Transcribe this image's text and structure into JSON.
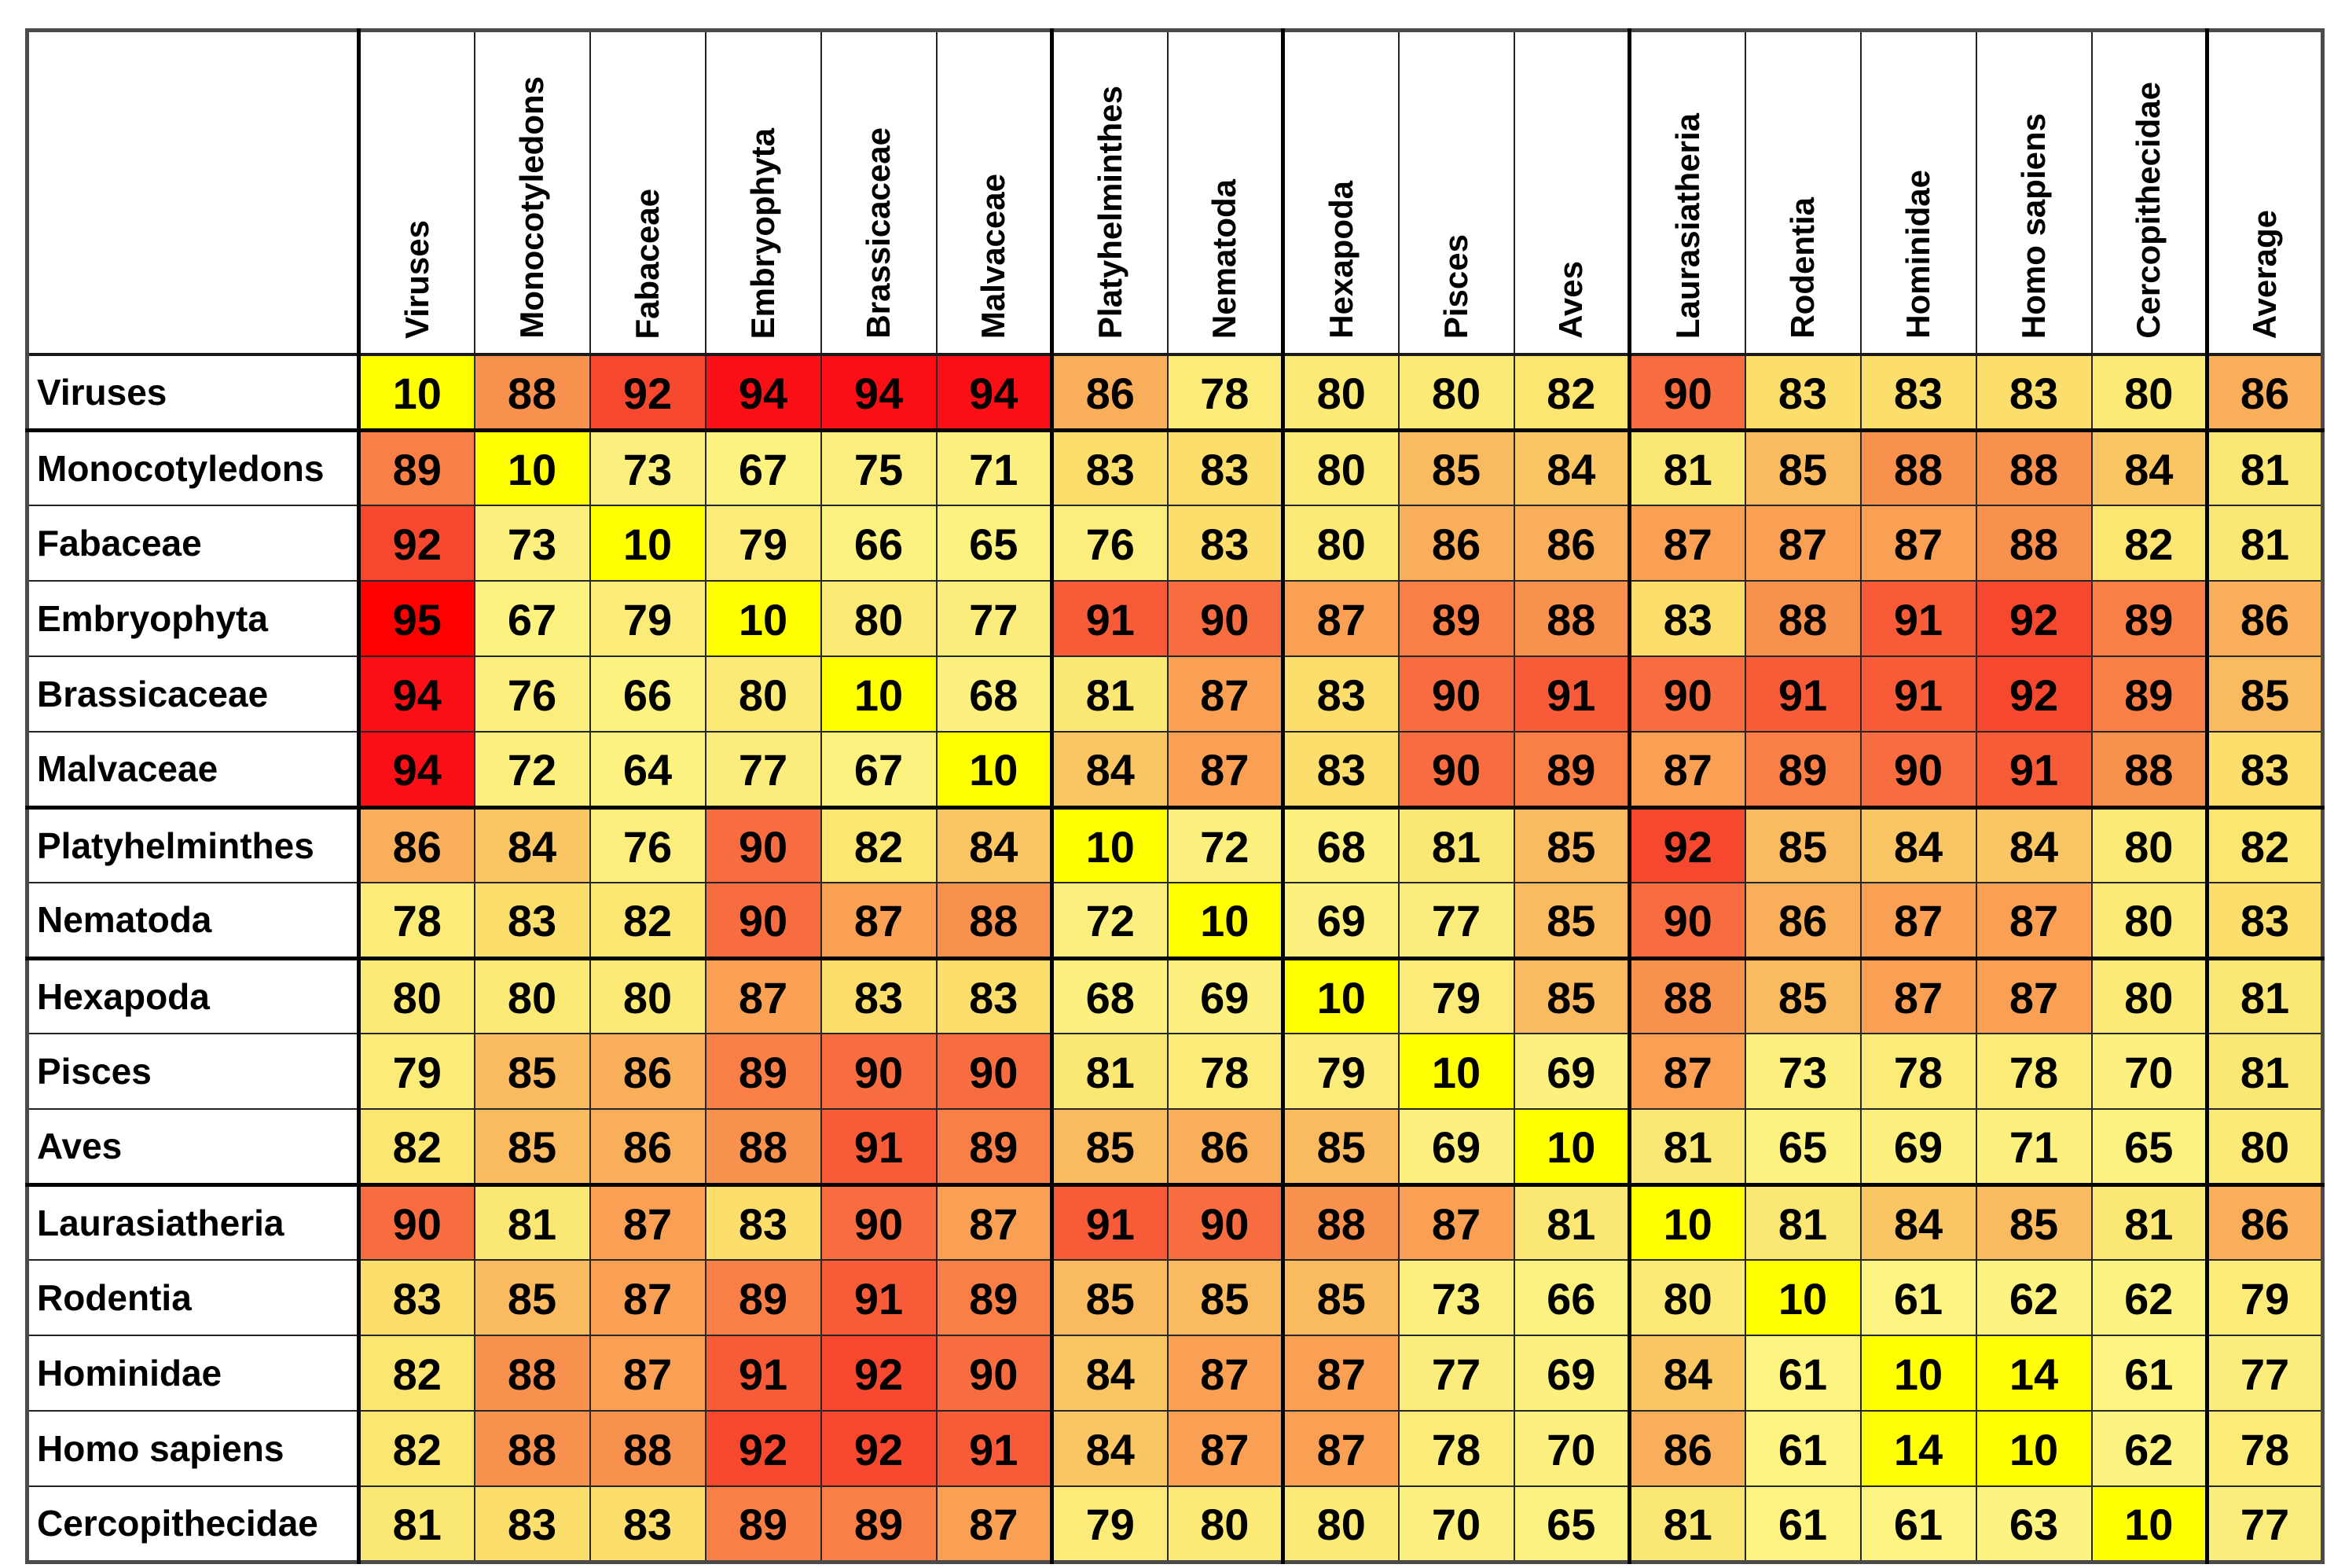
{
  "chart_data": {
    "type": "heatmap",
    "columns": [
      "Viruses",
      "Monocotyledons",
      "Fabaceae",
      "Embryophyta",
      "Brassicaceae",
      "Malvaceae",
      "Platyhelminthes",
      "Nematoda",
      "Hexapoda",
      "Pisces",
      "Aves",
      "Laurasiatheria",
      "Rodentia",
      "Hominidae",
      "Homo sapiens",
      "Cercopithecidae",
      "Average"
    ],
    "rows": [
      {
        "label": "Viruses",
        "values": [
          10,
          88,
          92,
          94,
          94,
          94,
          86,
          78,
          80,
          80,
          82,
          90,
          83,
          83,
          83,
          80,
          86
        ]
      },
      {
        "label": "Monocotyledons",
        "values": [
          89,
          10,
          73,
          67,
          75,
          71,
          83,
          83,
          80,
          85,
          84,
          81,
          85,
          88,
          88,
          84,
          81
        ]
      },
      {
        "label": "Fabaceae",
        "values": [
          92,
          73,
          10,
          79,
          66,
          65,
          76,
          83,
          80,
          86,
          86,
          87,
          87,
          87,
          88,
          82,
          81
        ]
      },
      {
        "label": "Embryophyta",
        "values": [
          95,
          67,
          79,
          10,
          80,
          77,
          91,
          90,
          87,
          89,
          88,
          83,
          88,
          91,
          92,
          89,
          86
        ]
      },
      {
        "label": "Brassicaceae",
        "values": [
          94,
          76,
          66,
          80,
          10,
          68,
          81,
          87,
          83,
          90,
          91,
          90,
          91,
          91,
          92,
          89,
          85
        ]
      },
      {
        "label": "Malvaceae",
        "values": [
          94,
          72,
          64,
          77,
          67,
          10,
          84,
          87,
          83,
          90,
          89,
          87,
          89,
          90,
          91,
          88,
          83
        ]
      },
      {
        "label": "Platyhelminthes",
        "values": [
          86,
          84,
          76,
          90,
          82,
          84,
          10,
          72,
          68,
          81,
          85,
          92,
          85,
          84,
          84,
          80,
          82
        ]
      },
      {
        "label": "Nematoda",
        "values": [
          78,
          83,
          82,
          90,
          87,
          88,
          72,
          10,
          69,
          77,
          85,
          90,
          86,
          87,
          87,
          80,
          83
        ]
      },
      {
        "label": "Hexapoda",
        "values": [
          80,
          80,
          80,
          87,
          83,
          83,
          68,
          69,
          10,
          79,
          85,
          88,
          85,
          87,
          87,
          80,
          81
        ]
      },
      {
        "label": "Pisces",
        "values": [
          79,
          85,
          86,
          89,
          90,
          90,
          81,
          78,
          79,
          10,
          69,
          87,
          73,
          78,
          78,
          70,
          81
        ]
      },
      {
        "label": "Aves",
        "values": [
          82,
          85,
          86,
          88,
          91,
          89,
          85,
          86,
          85,
          69,
          10,
          81,
          65,
          69,
          71,
          65,
          80
        ]
      },
      {
        "label": "Laurasiatheria",
        "values": [
          90,
          81,
          87,
          83,
          90,
          87,
          91,
          90,
          88,
          87,
          81,
          10,
          81,
          84,
          85,
          81,
          86
        ]
      },
      {
        "label": "Rodentia",
        "values": [
          83,
          85,
          87,
          89,
          91,
          89,
          85,
          85,
          85,
          73,
          66,
          80,
          10,
          61,
          62,
          62,
          79
        ]
      },
      {
        "label": "Hominidae",
        "values": [
          82,
          88,
          87,
          91,
          92,
          90,
          84,
          87,
          87,
          77,
          69,
          84,
          61,
          10,
          14,
          61,
          77
        ]
      },
      {
        "label": "Homo sapiens",
        "values": [
          82,
          88,
          88,
          92,
          92,
          91,
          84,
          87,
          87,
          78,
          70,
          86,
          61,
          14,
          10,
          62,
          78
        ]
      },
      {
        "label": "Cercopithecidae",
        "values": [
          81,
          83,
          83,
          89,
          89,
          87,
          79,
          80,
          80,
          70,
          65,
          81,
          61,
          61,
          63,
          10,
          77
        ]
      }
    ],
    "value_range": [
      10,
      95
    ],
    "color_scale": {
      "description": "yellow (low) to red (high) heat scale",
      "min_color": "#FFFF00",
      "max_color": "#FE0000",
      "stops": [
        {
          "value": 10,
          "color": "#FFFF00"
        },
        {
          "value": 20,
          "color": "#FEFC10"
        },
        {
          "value": 58,
          "color": "#FDF582"
        },
        {
          "value": 76,
          "color": "#FBEE7D"
        },
        {
          "value": 80,
          "color": "#FBEA76"
        },
        {
          "value": 82,
          "color": "#FBE671"
        },
        {
          "value": 83,
          "color": "#FBDE6C"
        },
        {
          "value": 84,
          "color": "#FAC663"
        },
        {
          "value": 86,
          "color": "#F9AE5A"
        },
        {
          "value": 88,
          "color": "#F9914E"
        },
        {
          "value": 90,
          "color": "#F86D3F"
        },
        {
          "value": 92,
          "color": "#F6482E"
        },
        {
          "value": 93,
          "color": "#F82D20"
        },
        {
          "value": 94,
          "color": "#FB0F16"
        },
        {
          "value": 95,
          "color": "#FE0000"
        }
      ]
    },
    "legend_position": "none",
    "grid": true
  }
}
